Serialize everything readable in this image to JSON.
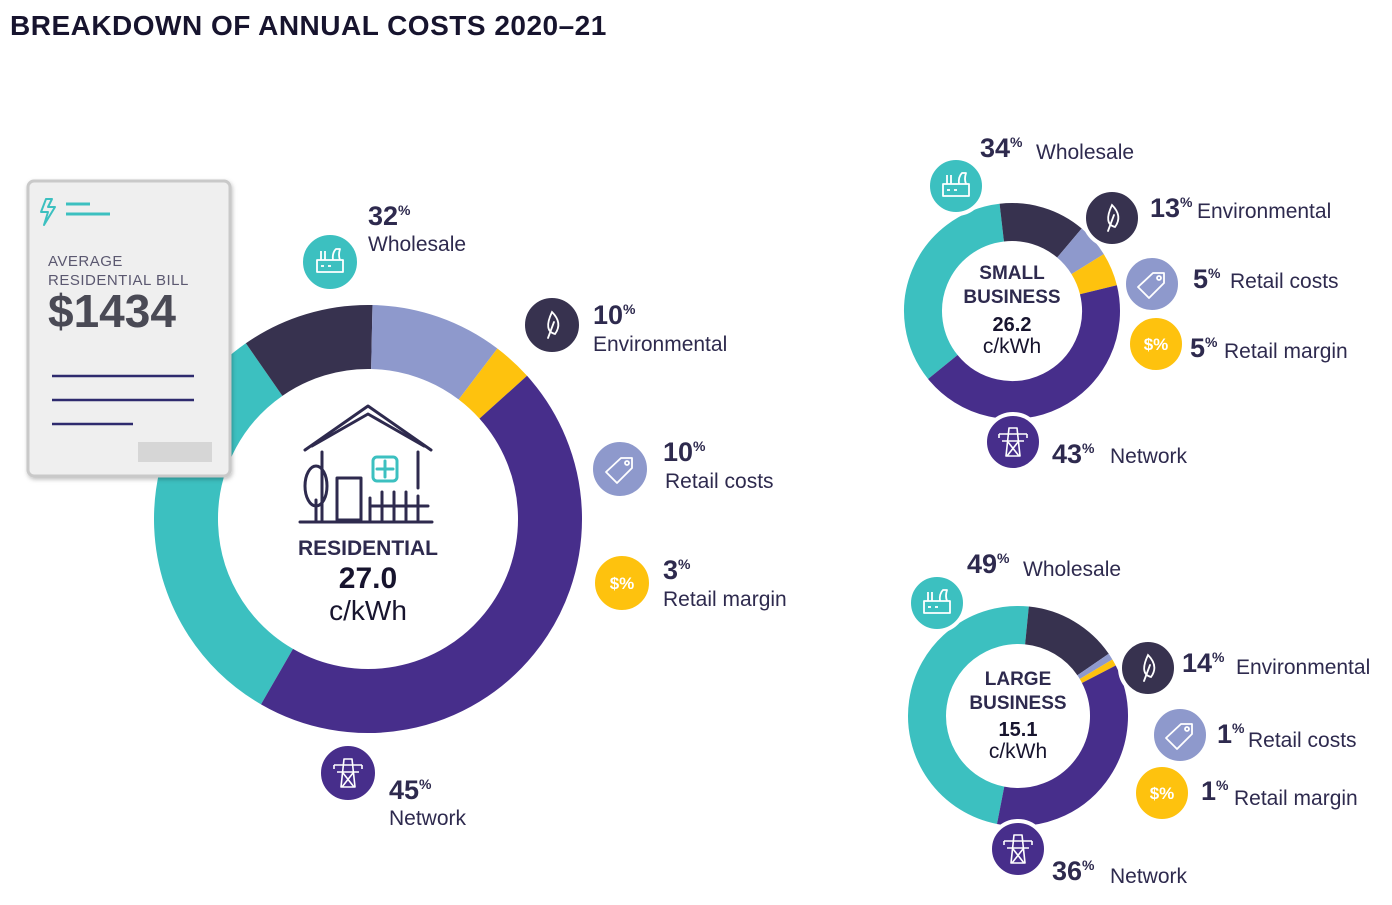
{
  "title": "BREAKDOWN OF ANNUAL COSTS 2020–21",
  "bill": {
    "label_line1": "AVERAGE",
    "label_line2": "RESIDENTIAL BILL",
    "amount": "$1434"
  },
  "colors": {
    "wholesale": "#3cc0c0",
    "environmental": "#37324f",
    "retail_costs": "#8e99cc",
    "retail_margin": "#fec20e",
    "network": "#472e8b"
  },
  "icons": {
    "wholesale": "factory-icon",
    "environmental": "leaf-icon",
    "retail_costs": "price-tag-icon",
    "retail_margin": "dollar-percent-icon",
    "network": "power-pylon-icon",
    "bill": "lightning-icon",
    "residential": "house-icon"
  },
  "percent_sign": "%",
  "retail_margin_icon_text": "$%",
  "chart_data": [
    {
      "type": "pie",
      "donut": true,
      "name": "RESIDENTIAL",
      "center_value": "27.0",
      "center_unit": "c/kWh",
      "categories": [
        "Wholesale",
        "Environmental",
        "Retail costs",
        "Retail margin",
        "Network"
      ],
      "values": [
        32,
        10,
        10,
        3,
        45
      ]
    },
    {
      "type": "pie",
      "donut": true,
      "name_line1": "SMALL",
      "name_line2": "BUSINESS",
      "center_value": "26.2",
      "center_unit": "c/kWh",
      "categories": [
        "Wholesale",
        "Environmental",
        "Retail costs",
        "Retail margin",
        "Network"
      ],
      "values": [
        34,
        13,
        5,
        5,
        43
      ]
    },
    {
      "type": "pie",
      "donut": true,
      "name_line1": "LARGE",
      "name_line2": "BUSINESS",
      "center_value": "15.1",
      "center_unit": "c/kWh",
      "categories": [
        "Wholesale",
        "Environmental",
        "Retail costs",
        "Retail margin",
        "Network"
      ],
      "values": [
        49,
        14,
        1,
        1,
        36
      ]
    }
  ]
}
